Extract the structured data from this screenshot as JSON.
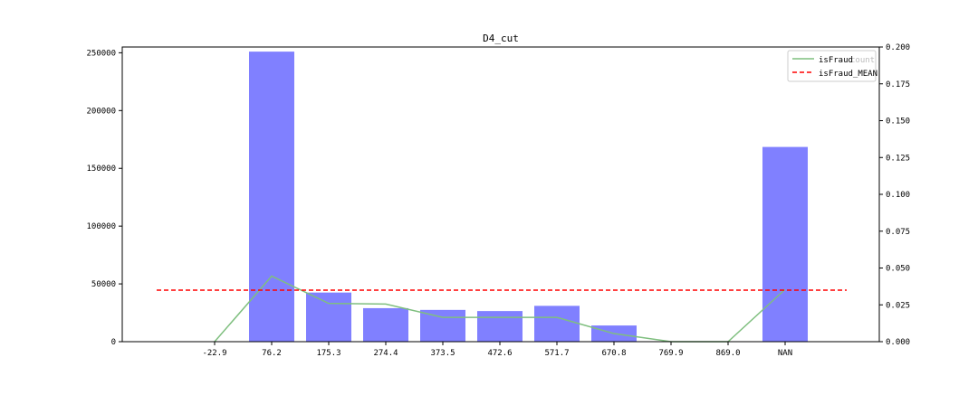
{
  "chart_data": {
    "type": "bar",
    "title": "D4_cut",
    "categories": [
      "-22.9",
      "76.2",
      "175.3",
      "274.4",
      "373.5",
      "472.6",
      "571.7",
      "670.8",
      "769.9",
      "869.0",
      "NAN"
    ],
    "series": [
      {
        "name": "count",
        "type": "bar",
        "axis": "left",
        "color": "#8080ff",
        "values": [
          0,
          251000,
          42500,
          29000,
          27500,
          26500,
          31000,
          14000,
          0,
          0,
          168500
        ]
      },
      {
        "name": "isFraud",
        "type": "line",
        "axis": "right",
        "color": "#7fbf7f",
        "values": [
          0.0,
          0.0445,
          0.026,
          0.0255,
          0.0165,
          0.0165,
          0.0165,
          0.0055,
          0.0,
          0.0,
          0.0355
        ]
      },
      {
        "name": "isFraud_MEAN",
        "type": "hline",
        "axis": "right",
        "color": "#ff0000",
        "value": 0.035
      }
    ],
    "y_left": {
      "ylim": [
        0,
        255000
      ],
      "ticks": [
        0,
        50000,
        100000,
        150000,
        200000,
        250000
      ]
    },
    "y_right": {
      "ylim": [
        0,
        0.2
      ],
      "ticks": [
        "0.000",
        "0.025",
        "0.050",
        "0.075",
        "0.100",
        "0.125",
        "0.150",
        "0.175",
        "0.200"
      ]
    },
    "xlabel": "",
    "ylabel": "",
    "grid": false,
    "legend": {
      "placement": "top-right",
      "entries": [
        "isFraud",
        "isFraud_MEAN"
      ],
      "overlay_text": "count"
    }
  }
}
